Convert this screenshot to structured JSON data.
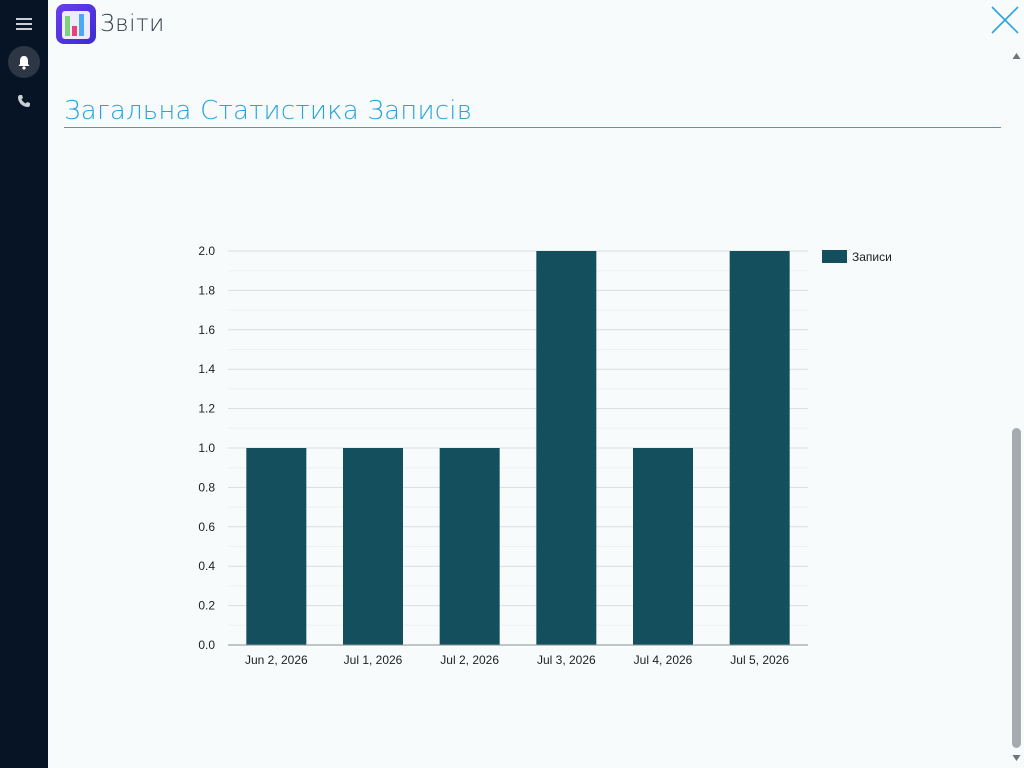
{
  "app": {
    "title": "Звіти",
    "icons": {
      "menu": "hamburger-menu-icon",
      "notifications": "bell-icon",
      "phone": "phone-icon",
      "close": "close-icon",
      "logo": "bar-chart-app-icon"
    }
  },
  "page": {
    "heading": "Загальна Статистика Записів"
  },
  "colors": {
    "sidebar": "#071426",
    "accent": "#29a3dd",
    "bar": "#134f5c",
    "background": "#f7fbfc"
  },
  "chart_data": {
    "type": "bar",
    "categories": [
      "Jun 2, 2026",
      "Jul 1, 2026",
      "Jul 2, 2026",
      "Jul 3, 2026",
      "Jul 4, 2026",
      "Jul 5, 2026"
    ],
    "series": [
      {
        "name": "Записи",
        "values": [
          1,
          1,
          1,
          2,
          1,
          2
        ],
        "color": "#134f5c"
      }
    ],
    "ylim": [
      0,
      2
    ],
    "yticks": [
      "0.0",
      "0.2",
      "0.4",
      "0.6",
      "0.8",
      "1.0",
      "1.2",
      "1.4",
      "1.6",
      "1.8",
      "2.0"
    ],
    "grid": true,
    "legend": "top-right"
  }
}
